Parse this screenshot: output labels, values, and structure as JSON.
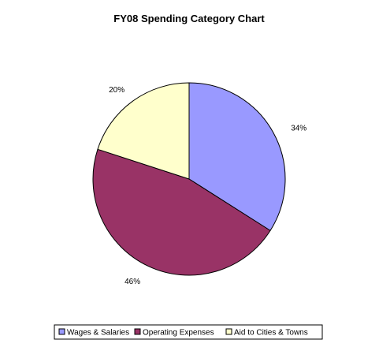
{
  "chart_data": {
    "type": "pie",
    "title": "FY08 Spending Category Chart",
    "categories": [
      "Wages & Salaries",
      "Operating Expenses",
      "Aid to Cities & Towns"
    ],
    "values": [
      34,
      46,
      20
    ],
    "labels": [
      "34%",
      "46%",
      "20%"
    ],
    "colors": [
      "#9999ff",
      "#993366",
      "#ffffcc"
    ],
    "legend_position": "bottom"
  }
}
